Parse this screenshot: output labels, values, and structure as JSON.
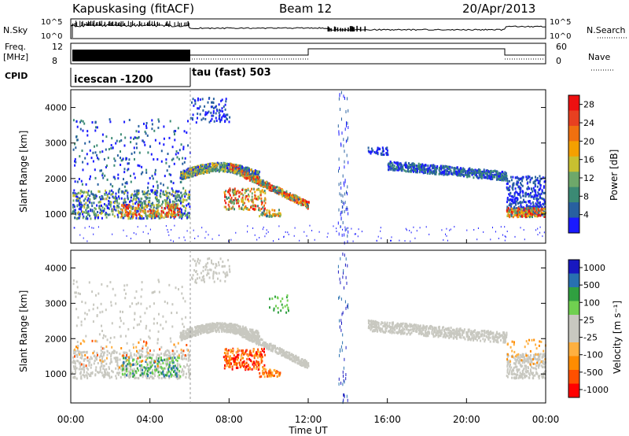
{
  "header": {
    "station": "Kapuskasing (fitACF)",
    "beam": "Beam 12",
    "date": "20/Apr/2013"
  },
  "noise_panel": {
    "left_label": "N.Sky",
    "left_ticks": [
      "10^5",
      "10^0"
    ],
    "right_label": "N.Search",
    "right_ticks": [
      "10^5",
      "10^0"
    ]
  },
  "freq_panel": {
    "left_label_1": "Freq.",
    "left_label_2": "[MHz]",
    "left_ticks": [
      "12",
      "8"
    ],
    "right_label": "Nave",
    "right_ticks": [
      "60",
      "0"
    ]
  },
  "cpid": {
    "label": "CPID",
    "mode_1": "icescan -1200",
    "mode_2": "tau (fast) 503"
  },
  "x_axis": {
    "label": "Time UT",
    "ticks": [
      "00:00",
      "04:00",
      "08:00",
      "12:00",
      "16:00",
      "20:00",
      "00:00"
    ]
  },
  "colors": {
    "power": [
      "#1a1aff",
      "#2860a0",
      "#3b8a74",
      "#6ea86a",
      "#c8c030",
      "#f4a000",
      "#f07010",
      "#e84020",
      "#ee1010"
    ],
    "velocity": [
      "#ff0000",
      "#ff5000",
      "#ff8c00",
      "#ffb040",
      "#c8c8c0",
      "#c8c8c0",
      "#70d050",
      "#30a040",
      "#2870b0",
      "#1818c0"
    ]
  },
  "chart_data": [
    {
      "type": "heatmap",
      "panel": "power",
      "ylabel": "Slant Range [km]",
      "xlim_hours": [
        0,
        24
      ],
      "ylim_km": [
        180,
        4500
      ],
      "yticks": [
        "1000",
        "2000",
        "3000",
        "4000"
      ],
      "colorbar_label": "Power [dB]",
      "colorbar_ticks": [
        "28",
        "24",
        "20",
        "16",
        "12",
        "8",
        "4"
      ],
      "clim": [
        0,
        30
      ]
    },
    {
      "type": "heatmap",
      "panel": "velocity",
      "ylabel": "Slant Range [km]",
      "xlim_hours": [
        0,
        24
      ],
      "ylim_km": [
        180,
        4500
      ],
      "yticks": [
        "1000",
        "2000",
        "3000",
        "4000"
      ],
      "colorbar_label": "Velocity [m s⁻¹]",
      "colorbar_ticks": [
        "1000",
        "500",
        "100",
        "25",
        "-25",
        "-100",
        "-500",
        "-1000"
      ]
    }
  ]
}
